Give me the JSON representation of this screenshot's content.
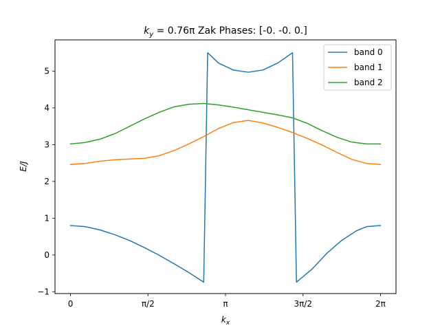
{
  "chart_data": {
    "type": "line",
    "title_math": "k",
    "title_math_sub": "y",
    "title_value": " = 0.76π",
    "title_suffix": " Zak Phases: [-0.  -0.   0.]",
    "xlabel_math": "k",
    "xlabel_sub": "x",
    "ylabel": "E/J",
    "xlim": [
      -0.3142,
      6.5974
    ],
    "ylim": [
      -1.05,
      5.85
    ],
    "xticks": [
      {
        "value": 0,
        "label": "0"
      },
      {
        "value": 1.5708,
        "label": "π/2"
      },
      {
        "value": 3.1416,
        "label": "π"
      },
      {
        "value": 4.7124,
        "label": "3π/2"
      },
      {
        "value": 6.2832,
        "label": "2π"
      }
    ],
    "yticks": [
      {
        "value": -1,
        "label": "−1"
      },
      {
        "value": 0,
        "label": "0"
      },
      {
        "value": 1,
        "label": "1"
      },
      {
        "value": 2,
        "label": "2"
      },
      {
        "value": 3,
        "label": "3"
      },
      {
        "value": 4,
        "label": "4"
      },
      {
        "value": 5,
        "label": "5"
      }
    ],
    "grid": false,
    "legend_position": "top-right",
    "series": [
      {
        "name": "band 0",
        "color": "#1f77b4",
        "points": [
          [
            0.0,
            0.8
          ],
          [
            0.3,
            0.77
          ],
          [
            0.6,
            0.68
          ],
          [
            0.9,
            0.55
          ],
          [
            1.2,
            0.39
          ],
          [
            1.5,
            0.2
          ],
          [
            1.8,
            -0.01
          ],
          [
            2.1,
            -0.24
          ],
          [
            2.4,
            -0.48
          ],
          [
            2.7,
            -0.74
          ],
          [
            2.7,
            -0.74
          ],
          [
            2.78,
            5.5
          ],
          [
            3.0,
            5.22
          ],
          [
            3.3,
            5.03
          ],
          [
            3.6,
            4.97
          ],
          [
            3.9,
            5.03
          ],
          [
            4.2,
            5.22
          ],
          [
            4.5,
            5.5
          ],
          [
            4.5,
            5.5
          ],
          [
            4.58,
            -0.74
          ],
          [
            4.9,
            -0.38
          ],
          [
            5.2,
            0.05
          ],
          [
            5.5,
            0.4
          ],
          [
            5.8,
            0.66
          ],
          [
            6.0,
            0.77
          ],
          [
            6.2832,
            0.8
          ]
        ]
      },
      {
        "name": "band 1",
        "color": "#ff7f0e",
        "points": [
          [
            0.0,
            2.46
          ],
          [
            0.3,
            2.49
          ],
          [
            0.6,
            2.55
          ],
          [
            0.9,
            2.59
          ],
          [
            1.2,
            2.61
          ],
          [
            1.5,
            2.63
          ],
          [
            1.8,
            2.7
          ],
          [
            2.1,
            2.84
          ],
          [
            2.4,
            3.02
          ],
          [
            2.7,
            3.22
          ],
          [
            3.0,
            3.44
          ],
          [
            3.3,
            3.6
          ],
          [
            3.6,
            3.66
          ],
          [
            3.9,
            3.59
          ],
          [
            4.2,
            3.47
          ],
          [
            4.5,
            3.33
          ],
          [
            4.8,
            3.17
          ],
          [
            5.1,
            2.99
          ],
          [
            5.4,
            2.79
          ],
          [
            5.7,
            2.6
          ],
          [
            6.0,
            2.49
          ],
          [
            6.2832,
            2.46
          ]
        ]
      },
      {
        "name": "band 2",
        "color": "#2ca02c",
        "points": [
          [
            0.0,
            3.02
          ],
          [
            0.3,
            3.06
          ],
          [
            0.6,
            3.15
          ],
          [
            0.9,
            3.3
          ],
          [
            1.2,
            3.5
          ],
          [
            1.5,
            3.7
          ],
          [
            1.8,
            3.88
          ],
          [
            2.1,
            4.03
          ],
          [
            2.4,
            4.1
          ],
          [
            2.7,
            4.12
          ],
          [
            3.0,
            4.08
          ],
          [
            3.3,
            4.02
          ],
          [
            3.6,
            3.95
          ],
          [
            3.9,
            3.88
          ],
          [
            4.2,
            3.81
          ],
          [
            4.5,
            3.73
          ],
          [
            4.8,
            3.58
          ],
          [
            5.1,
            3.38
          ],
          [
            5.4,
            3.2
          ],
          [
            5.7,
            3.07
          ],
          [
            6.0,
            3.02
          ],
          [
            6.2832,
            3.02
          ]
        ]
      }
    ]
  }
}
